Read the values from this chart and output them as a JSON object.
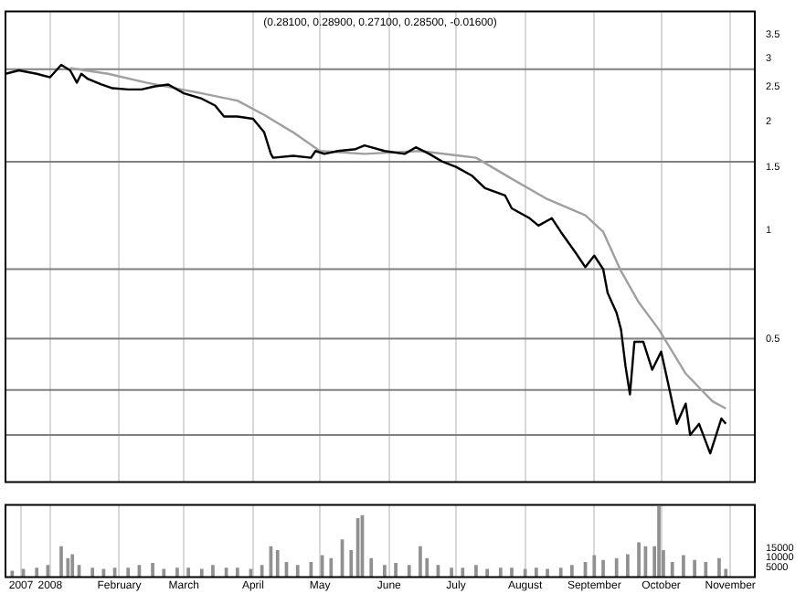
{
  "chart_data": [
    {
      "type": "line",
      "title": "(0.28100, 0.28900, 0.27100, 0.28500, -0.01600)",
      "log": "y",
      "grid": "x",
      "marker": "none",
      "tick_labels": "y",
      "xlim": [
        "2007-12-12",
        "2008-11-12"
      ],
      "xticks": [
        {
          "value": "2008-01-01",
          "label": null
        },
        {
          "value": "2008-02-01",
          "label": null
        },
        {
          "value": "2008-03-01",
          "label": null
        },
        {
          "value": "2008-04-01",
          "label": null
        },
        {
          "value": "2008-05-01",
          "label": null
        },
        {
          "value": "2008-06-01",
          "label": null
        },
        {
          "value": "2008-07-01",
          "label": null
        },
        {
          "value": "2008-08-01",
          "label": null
        },
        {
          "value": "2008-09-01",
          "label": null
        },
        {
          "value": "2008-10-01",
          "label": null
        },
        {
          "value": "2008-11-01",
          "label": null
        }
      ],
      "ylim": [
        0.2,
        4.05
      ],
      "yticks": [
        0.5,
        1.0,
        1.5,
        2.0,
        2.5,
        3.0,
        3.5
      ],
      "ref_lines": [
        {
          "axis": "y",
          "value": 2.8,
          "color": "#808080"
        },
        {
          "axis": "y",
          "value": 1.55,
          "color": "#808080"
        },
        {
          "axis": "y",
          "value": 0.78,
          "color": "#808080"
        },
        {
          "axis": "y",
          "value": 0.5,
          "color": "#808080"
        },
        {
          "axis": "y",
          "value": 0.36,
          "color": "#808080"
        },
        {
          "axis": "y",
          "value": 0.27,
          "color": "#808080"
        }
      ],
      "series": [
        {
          "color": "#000000",
          "x": [
            "2007-12-12",
            "2007-12-18",
            "2007-12-26",
            "2008-01-01",
            "2008-01-06",
            "2008-01-10",
            "2008-01-13",
            "2008-01-15",
            "2008-01-18",
            "2008-01-24",
            "2008-01-29",
            "2008-02-05",
            "2008-02-11",
            "2008-02-17",
            "2008-02-23",
            "2008-03-01",
            "2008-03-09",
            "2008-03-15",
            "2008-03-19",
            "2008-03-25",
            "2008-04-01",
            "2008-04-06",
            "2008-04-09",
            "2008-04-10",
            "2008-04-19",
            "2008-04-27",
            "2008-04-29",
            "2008-05-03",
            "2008-05-09",
            "2008-05-17",
            "2008-05-21",
            "2008-05-30",
            "2008-06-08",
            "2008-06-13",
            "2008-06-19",
            "2008-06-25",
            "2008-07-01",
            "2008-07-08",
            "2008-07-14",
            "2008-07-23",
            "2008-07-26",
            "2008-08-03",
            "2008-08-07",
            "2008-08-13",
            "2008-08-17",
            "2008-08-24",
            "2008-08-28",
            "2008-09-01",
            "2008-09-05",
            "2008-09-07",
            "2008-09-11",
            "2008-09-13",
            "2008-09-15",
            "2008-09-17",
            "2008-09-19",
            "2008-09-23",
            "2008-09-27",
            "2008-10-01",
            "2008-10-05",
            "2008-10-08",
            "2008-10-12",
            "2008-10-14",
            "2008-10-18",
            "2008-10-23",
            "2008-10-28",
            "2008-10-30"
          ],
          "values": [
            2.72,
            2.78,
            2.72,
            2.66,
            2.88,
            2.78,
            2.57,
            2.72,
            2.63,
            2.54,
            2.48,
            2.46,
            2.46,
            2.51,
            2.54,
            2.4,
            2.32,
            2.22,
            2.07,
            2.07,
            2.04,
            1.87,
            1.63,
            1.59,
            1.61,
            1.59,
            1.66,
            1.63,
            1.66,
            1.68,
            1.72,
            1.66,
            1.63,
            1.7,
            1.63,
            1.55,
            1.5,
            1.42,
            1.31,
            1.25,
            1.15,
            1.08,
            1.03,
            1.08,
            0.99,
            0.86,
            0.79,
            0.85,
            0.78,
            0.67,
            0.59,
            0.53,
            0.42,
            0.35,
            0.49,
            0.49,
            0.41,
            0.46,
            0.355,
            0.29,
            0.33,
            0.27,
            0.29,
            0.24,
            0.3,
            0.29
          ]
        },
        {
          "color": "#a0a0a0",
          "x": [
            "2008-01-10",
            "2008-01-27",
            "2008-02-13",
            "2008-03-09",
            "2008-03-25",
            "2008-04-06",
            "2008-04-19",
            "2008-05-01",
            "2008-05-21",
            "2008-06-15",
            "2008-07-10",
            "2008-07-26",
            "2008-08-11",
            "2008-08-28",
            "2008-09-05",
            "2008-09-13",
            "2008-09-21",
            "2008-09-30",
            "2008-10-12",
            "2008-10-24",
            "2008-10-30"
          ],
          "values": [
            2.82,
            2.72,
            2.57,
            2.4,
            2.29,
            2.09,
            1.87,
            1.66,
            1.63,
            1.66,
            1.59,
            1.39,
            1.22,
            1.1,
            0.99,
            0.77,
            0.63,
            0.53,
            0.4,
            0.335,
            0.32
          ]
        }
      ]
    },
    {
      "type": "bar",
      "grid": "x",
      "color": "#909090",
      "xlim": [
        "2007-12-12",
        "2008-11-12"
      ],
      "xticks": [
        {
          "value": "2007-12-19",
          "label": "2007"
        },
        {
          "value": "2008-01-01",
          "label": "2008"
        },
        {
          "value": "2008-02-01",
          "label": "February"
        },
        {
          "value": "2008-03-01",
          "label": "March"
        },
        {
          "value": "2008-04-01",
          "label": "April"
        },
        {
          "value": "2008-05-01",
          "label": "May"
        },
        {
          "value": "2008-06-01",
          "label": "June"
        },
        {
          "value": "2008-07-01",
          "label": "July"
        },
        {
          "value": "2008-08-01",
          "label": "August"
        },
        {
          "value": "2008-09-01",
          "label": "September"
        },
        {
          "value": "2008-10-01",
          "label": "October"
        },
        {
          "value": "2008-11-01",
          "label": "November"
        }
      ],
      "ylim": [
        0,
        37000
      ],
      "yticks": [
        5000,
        10000,
        15000
      ],
      "x": [
        "2007-12-15",
        "2007-12-20",
        "2007-12-26",
        "2007-12-31",
        "2008-01-06",
        "2008-01-09",
        "2008-01-11",
        "2008-01-14",
        "2008-01-20",
        "2008-01-25",
        "2008-01-30",
        "2008-02-05",
        "2008-02-10",
        "2008-02-16",
        "2008-02-21",
        "2008-02-27",
        "2008-03-03",
        "2008-03-09",
        "2008-03-14",
        "2008-03-20",
        "2008-03-25",
        "2008-03-31",
        "2008-04-05",
        "2008-04-09",
        "2008-04-12",
        "2008-04-16",
        "2008-04-21",
        "2008-04-27",
        "2008-05-02",
        "2008-05-06",
        "2008-05-11",
        "2008-05-15",
        "2008-05-18",
        "2008-05-20",
        "2008-05-24",
        "2008-05-30",
        "2008-06-04",
        "2008-06-10",
        "2008-06-15",
        "2008-06-18",
        "2008-06-23",
        "2008-06-29",
        "2008-07-04",
        "2008-07-10",
        "2008-07-15",
        "2008-07-21",
        "2008-07-26",
        "2008-08-01",
        "2008-08-06",
        "2008-08-11",
        "2008-08-17",
        "2008-08-22",
        "2008-08-28",
        "2008-09-01",
        "2008-09-05",
        "2008-09-11",
        "2008-09-16",
        "2008-09-21",
        "2008-09-24",
        "2008-09-28",
        "2008-09-30",
        "2008-10-02",
        "2008-10-06",
        "2008-10-11",
        "2008-10-16",
        "2008-10-21",
        "2008-10-27",
        "2008-10-30"
      ],
      "values": [
        3000,
        4000,
        4500,
        6000,
        15500,
        9500,
        11500,
        6000,
        4500,
        4000,
        4500,
        4500,
        6000,
        7000,
        4000,
        4500,
        4500,
        4000,
        6000,
        4500,
        4500,
        4000,
        6000,
        15500,
        13500,
        7500,
        6000,
        7500,
        11000,
        9500,
        19000,
        13500,
        30000,
        31500,
        9500,
        6000,
        7000,
        6000,
        15500,
        9500,
        6000,
        4500,
        4500,
        6000,
        4000,
        4500,
        4500,
        4000,
        4500,
        4000,
        4500,
        6000,
        7500,
        11000,
        8500,
        9500,
        11500,
        17500,
        15500,
        15500,
        36000,
        13500,
        7500,
        11000,
        8500,
        7500,
        9500,
        4000
      ]
    }
  ]
}
